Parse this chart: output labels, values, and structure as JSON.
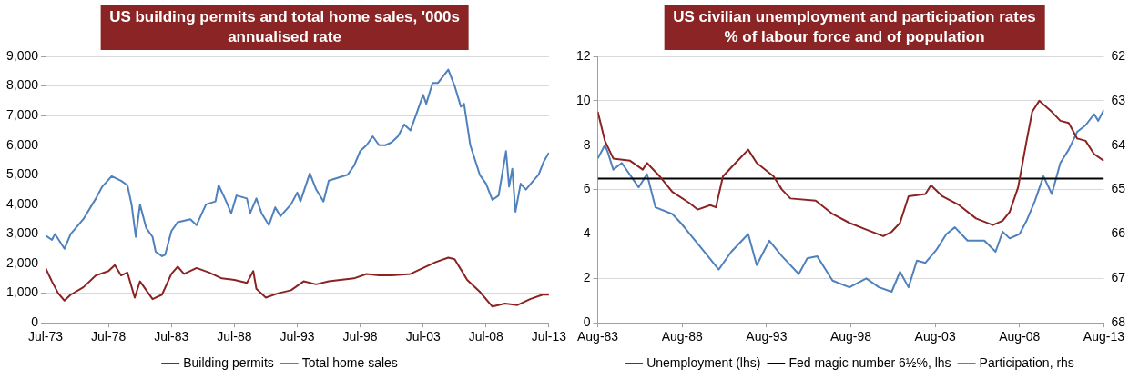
{
  "chart_data": [
    {
      "type": "line",
      "title": "US building permits and total home sales, '000s",
      "subtitle": "annualised rate",
      "xlim": [
        "1973-07",
        "2013-07"
      ],
      "xticks": [
        {
          "value": "1973-07",
          "label": "Jul-73"
        },
        {
          "value": "1978-07",
          "label": "Jul-78"
        },
        {
          "value": "1983-07",
          "label": "Jul-83"
        },
        {
          "value": "1988-07",
          "label": "Jul-88"
        },
        {
          "value": "1993-07",
          "label": "Jul-93"
        },
        {
          "value": "1998-07",
          "label": "Jul-98"
        },
        {
          "value": "2003-07",
          "label": "Jul-03"
        },
        {
          "value": "2008-07",
          "label": "Jul-08"
        },
        {
          "value": "2013-07",
          "label": "Jul-13"
        }
      ],
      "ylim": [
        0,
        9000
      ],
      "yticks": [
        0,
        {
          "value": 1000,
          "label": "1,000"
        },
        {
          "value": 2000,
          "label": "2,000"
        },
        {
          "value": 3000,
          "label": "3,000"
        },
        {
          "value": 4000,
          "label": "4,000"
        },
        {
          "value": 5000,
          "label": "5,000"
        },
        {
          "value": 6000,
          "label": "6,000"
        },
        {
          "value": 7000,
          "label": "7,000"
        },
        {
          "value": 8000,
          "label": "8,000"
        },
        {
          "value": 9000,
          "label": "9,000"
        }
      ],
      "grid": "y",
      "legend": "bottom",
      "marker": "none",
      "line_style": "solid",
      "series": [
        {
          "name": "Building permits",
          "color": "#8b2323",
          "x": [
            "1973-07",
            "1974-01",
            "1974-07",
            "1975-01",
            "1975-07",
            "1976-07",
            "1977-07",
            "1978-07",
            "1979-01",
            "1979-07",
            "1980-01",
            "1980-08",
            "1981-01",
            "1982-01",
            "1982-10",
            "1983-07",
            "1984-01",
            "1984-07",
            "1985-07",
            "1986-07",
            "1987-07",
            "1988-07",
            "1989-07",
            "1990-01",
            "1990-04",
            "1991-01",
            "1992-01",
            "1993-01",
            "1994-01",
            "1995-01",
            "1996-01",
            "1998-01",
            "1999-01",
            "2000-01",
            "2001-01",
            "2002-07",
            "2003-07",
            "2004-07",
            "2005-07",
            "2006-01",
            "2007-01",
            "2008-01",
            "2009-01",
            "2010-01",
            "2011-01",
            "2012-01",
            "2013-01",
            "2013-07"
          ],
          "values": [
            1850,
            1400,
            1000,
            750,
            950,
            1200,
            1600,
            1750,
            1950,
            1600,
            1700,
            850,
            1400,
            800,
            950,
            1650,
            1900,
            1650,
            1850,
            1700,
            1500,
            1450,
            1350,
            1750,
            1150,
            850,
            1000,
            1100,
            1400,
            1300,
            1400,
            1500,
            1650,
            1600,
            1600,
            1650,
            1850,
            2050,
            2200,
            2150,
            1450,
            1050,
            550,
            650,
            600,
            800,
            950,
            950
          ]
        },
        {
          "name": "Total home sales",
          "color": "#4f81bd",
          "x": [
            "1973-07",
            "1974-01",
            "1974-04",
            "1975-01",
            "1975-07",
            "1976-07",
            "1977-07",
            "1978-01",
            "1978-10",
            "1979-07",
            "1980-01",
            "1980-05",
            "1980-09",
            "1981-01",
            "1981-07",
            "1982-01",
            "1982-04",
            "1982-10",
            "1983-01",
            "1983-07",
            "1984-01",
            "1985-01",
            "1985-07",
            "1986-04",
            "1987-01",
            "1987-04",
            "1987-10",
            "1988-04",
            "1988-09",
            "1989-07",
            "1989-10",
            "1990-04",
            "1990-09",
            "1991-04",
            "1991-10",
            "1992-03",
            "1993-01",
            "1993-07",
            "1993-10",
            "1994-07",
            "1995-01",
            "1995-08",
            "1996-01",
            "1996-10",
            "1997-07",
            "1998-01",
            "1998-07",
            "1999-01",
            "1999-07",
            "2000-01",
            "2000-07",
            "2001-01",
            "2001-07",
            "2002-01",
            "2002-07",
            "2003-01",
            "2003-07",
            "2003-10",
            "2004-04",
            "2004-09",
            "2005-07",
            "2006-01",
            "2006-07",
            "2006-10",
            "2007-04",
            "2008-01",
            "2008-07",
            "2009-01",
            "2009-07",
            "2010-02",
            "2010-05",
            "2010-08",
            "2010-11",
            "2011-04",
            "2011-09",
            "2012-04",
            "2012-09",
            "2013-02",
            "2013-07"
          ],
          "values": [
            2950,
            2800,
            3000,
            2500,
            3000,
            3500,
            4200,
            4600,
            4950,
            4800,
            4650,
            4000,
            2900,
            4000,
            3200,
            2900,
            2400,
            2250,
            2300,
            3100,
            3400,
            3500,
            3300,
            4000,
            4100,
            4650,
            4200,
            3700,
            4300,
            4200,
            3700,
            4200,
            3700,
            3300,
            3900,
            3600,
            4000,
            4400,
            4100,
            5050,
            4500,
            4100,
            4800,
            4900,
            5000,
            5300,
            5800,
            6000,
            6300,
            6000,
            6000,
            6100,
            6300,
            6700,
            6500,
            7100,
            7700,
            7400,
            8100,
            8100,
            8550,
            8000,
            7300,
            7400,
            6000,
            5000,
            4700,
            4150,
            4300,
            5800,
            4600,
            5200,
            3750,
            4700,
            4500,
            4800,
            5000,
            5450,
            5750
          ]
        }
      ]
    },
    {
      "type": "line",
      "title": "US civilian unemployment and participation rates",
      "subtitle": "% of labour force and of population",
      "xlim": [
        "1983-08",
        "2013-08"
      ],
      "xticks": [
        {
          "value": "1983-08",
          "label": "Aug-83"
        },
        {
          "value": "1988-08",
          "label": "Aug-88"
        },
        {
          "value": "1993-08",
          "label": "Aug-93"
        },
        {
          "value": "1998-08",
          "label": "Aug-98"
        },
        {
          "value": "2003-08",
          "label": "Aug-03"
        },
        {
          "value": "2008-08",
          "label": "Aug-08"
        },
        {
          "value": "2013-08",
          "label": "Aug-13"
        }
      ],
      "ylim": [
        0,
        12
      ],
      "yticks": [
        0,
        2,
        4,
        6,
        8,
        10,
        12
      ],
      "y2lim": [
        68,
        62
      ],
      "y2ticks": [
        68,
        67,
        66,
        65,
        64,
        63,
        62
      ],
      "grid": "y",
      "legend": "bottom",
      "marker": "none",
      "line_style": "solid",
      "series": [
        {
          "name": "Unemployment (lhs)",
          "color": "#8b2323",
          "x": [
            "1983-08",
            "1984-01",
            "1984-07",
            "1985-07",
            "1986-04",
            "1986-07",
            "1987-04",
            "1988-01",
            "1989-01",
            "1989-07",
            "1990-04",
            "1990-08",
            "1991-01",
            "1991-10",
            "1992-07",
            "1993-01",
            "1994-01",
            "1994-07",
            "1995-01",
            "1996-07",
            "1997-07",
            "1998-07",
            "1999-07",
            "2000-07",
            "2001-01",
            "2001-07",
            "2002-01",
            "2003-01",
            "2003-05",
            "2004-01",
            "2005-01",
            "2006-01",
            "2007-01",
            "2007-08",
            "2008-01",
            "2008-07",
            "2009-01",
            "2009-05",
            "2009-10",
            "2010-07",
            "2011-01",
            "2011-07",
            "2012-01",
            "2012-07",
            "2013-01",
            "2013-08"
          ],
          "values": [
            9.5,
            8.2,
            7.4,
            7.3,
            6.9,
            7.2,
            6.6,
            5.9,
            5.4,
            5.1,
            5.3,
            5.2,
            6.6,
            7.2,
            7.8,
            7.2,
            6.6,
            6.0,
            5.6,
            5.5,
            4.9,
            4.5,
            4.2,
            3.9,
            4.1,
            4.5,
            5.7,
            5.8,
            6.2,
            5.7,
            5.3,
            4.7,
            4.4,
            4.6,
            5.0,
            6.1,
            8.2,
            9.5,
            10.0,
            9.5,
            9.1,
            9.0,
            8.3,
            8.2,
            7.6,
            7.3
          ]
        },
        {
          "name": "Fed magic number 6½%, lhs",
          "color": "#000000",
          "x": [
            "1983-08",
            "2013-08"
          ],
          "values": [
            6.5,
            6.5
          ]
        },
        {
          "name": "Participation, rhs",
          "color": "#4f81bd",
          "axis": "y2",
          "x": [
            "1983-08",
            "1984-01",
            "1984-03",
            "1984-07",
            "1985-01",
            "1986-01",
            "1986-07",
            "1987-01",
            "1988-01",
            "1988-07",
            "1989-04",
            "1990-01",
            "1990-10",
            "1991-07",
            "1992-07",
            "1993-01",
            "1993-10",
            "1994-07",
            "1995-07",
            "1996-01",
            "1996-08",
            "1997-07",
            "1998-07",
            "1999-07",
            "2000-04",
            "2001-01",
            "2001-07",
            "2002-01",
            "2002-07",
            "2003-01",
            "2003-09",
            "2004-04",
            "2004-10",
            "2005-07",
            "2006-07",
            "2007-03",
            "2007-08",
            "2008-01",
            "2008-08",
            "2009-01",
            "2009-07",
            "2010-01",
            "2010-07",
            "2011-01",
            "2011-07",
            "2012-01",
            "2012-07",
            "2013-01",
            "2013-04",
            "2013-08"
          ],
          "values": [
            64.3,
            64.0,
            64.15,
            64.55,
            64.4,
            64.95,
            64.65,
            65.4,
            65.55,
            65.75,
            66.1,
            66.45,
            66.8,
            66.4,
            66.0,
            66.7,
            66.15,
            66.5,
            66.9,
            66.55,
            66.5,
            67.05,
            67.2,
            67.0,
            67.2,
            67.3,
            66.85,
            67.2,
            66.6,
            66.65,
            66.35,
            66.0,
            65.85,
            66.15,
            66.15,
            66.4,
            65.95,
            66.1,
            66.0,
            65.7,
            65.25,
            64.7,
            65.1,
            64.4,
            64.1,
            63.7,
            63.55,
            63.3,
            63.45,
            63.2
          ]
        }
      ]
    }
  ]
}
